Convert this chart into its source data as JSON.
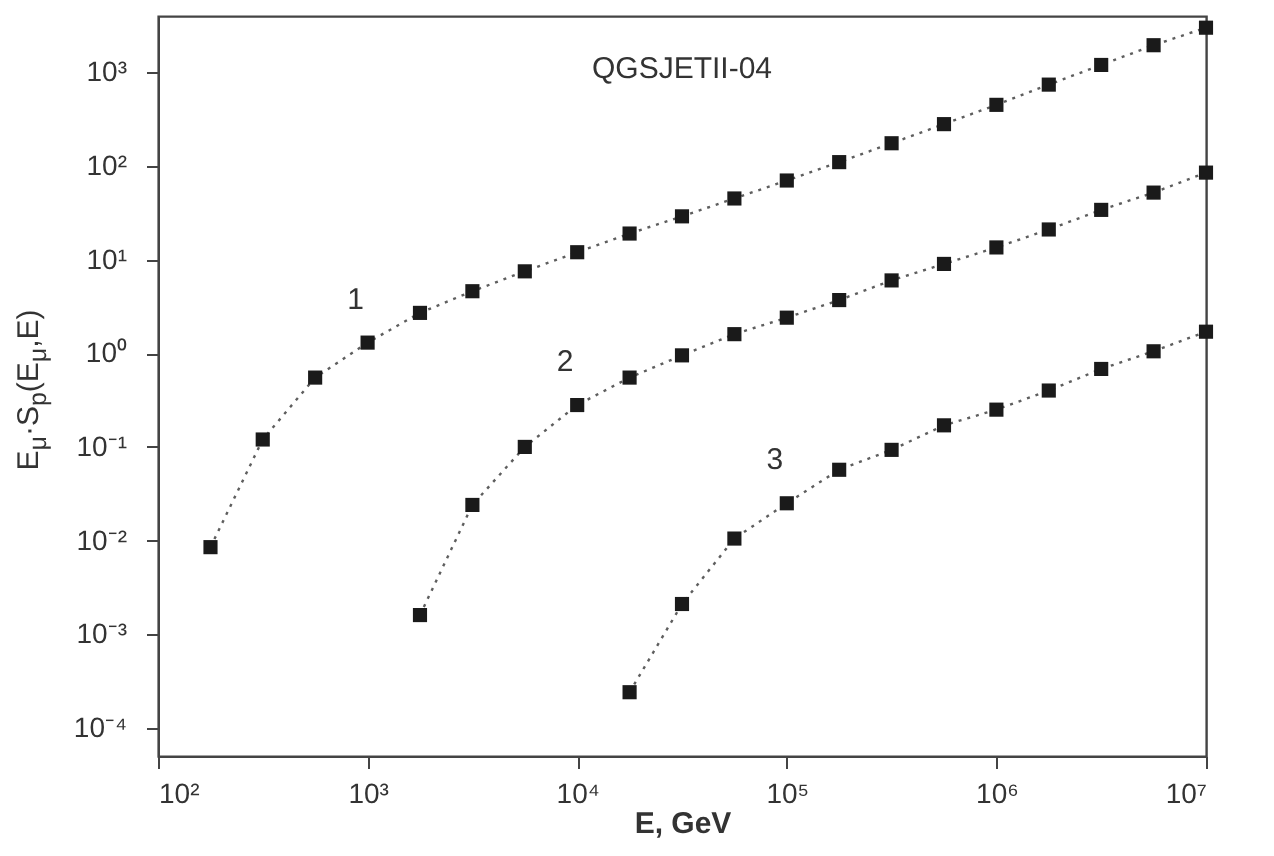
{
  "chart_data": {
    "type": "line",
    "title": "QGSJETII-04",
    "xlabel": "E, GeV",
    "ylabel": "E$_{μ}$·S$_{p}$(E$_{μ}$,E)",
    "log": "xy",
    "grid": false,
    "marker": "square",
    "line_style": "dotted",
    "xlim": [
      100,
      10000000
    ],
    "ylim": [
      5e-05,
      4000
    ],
    "xticks": [
      {
        "value": 100,
        "label": "10²"
      },
      {
        "value": 1000,
        "label": "10³"
      },
      {
        "value": 10000,
        "label": "10⁴"
      },
      {
        "value": 100000,
        "label": "10⁵"
      },
      {
        "value": 1000000,
        "label": "10⁶"
      },
      {
        "value": 10000000,
        "label": "10⁷"
      }
    ],
    "yticks": [
      {
        "value": 0.0001,
        "label": "10⁻⁴"
      },
      {
        "value": 0.001,
        "label": "10⁻³"
      },
      {
        "value": 0.01,
        "label": "10⁻²"
      },
      {
        "value": 0.1,
        "label": "10⁻¹"
      },
      {
        "value": 1,
        "label": "10⁰"
      },
      {
        "value": 10,
        "label": "10¹"
      },
      {
        "value": 100,
        "label": "10²"
      },
      {
        "value": 1000,
        "label": "10³"
      }
    ],
    "series": [
      {
        "color": "#1a1a1a",
        "x": [
          178,
          316,
          562,
          1000,
          1778,
          3162,
          5623,
          10000,
          17780,
          31620,
          56230,
          100000,
          177800,
          316200,
          562300,
          1000000,
          1778000,
          3162000,
          5623000,
          10000000
        ],
        "values": [
          0.0085,
          0.12,
          0.55,
          1.3,
          2.7,
          4.6,
          7.5,
          12,
          19,
          29,
          45,
          70,
          110,
          175,
          280,
          450,
          740,
          1200,
          1950,
          3000
        ]
      },
      {
        "color": "#1a1a1a",
        "x": [
          1778,
          3162,
          5623,
          10000,
          17780,
          31620,
          56230,
          100000,
          177800,
          316200,
          562300,
          1000000,
          1778000,
          3162000,
          5623000,
          10000000
        ],
        "values": [
          0.0016,
          0.024,
          0.1,
          0.28,
          0.55,
          0.95,
          1.6,
          2.4,
          3.7,
          6,
          9,
          13.5,
          21,
          34,
          52,
          85
        ]
      },
      {
        "color": "#1a1a1a",
        "x": [
          17780,
          31620,
          56230,
          100000,
          177800,
          316200,
          562300,
          1000000,
          1778000,
          3162000,
          5623000,
          10000000
        ],
        "values": [
          0.00024,
          0.0021,
          0.0105,
          0.025,
          0.057,
          0.093,
          0.17,
          0.25,
          0.4,
          0.68,
          1.05,
          1.7
        ]
      }
    ],
    "annotations": [
      "1",
      "2",
      "3"
    ]
  }
}
